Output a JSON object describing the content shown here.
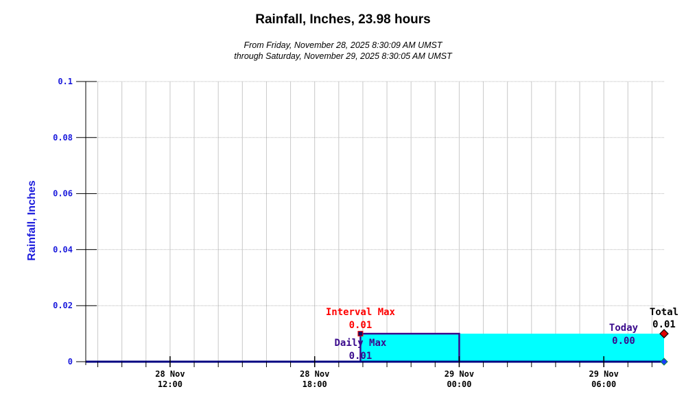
{
  "chart_data": {
    "type": "area",
    "title": "Rainfall, Inches, 23.98 hours",
    "subtitle_lines": [
      "From Friday, November 28, 2025 8:30:09 AM UMST",
      "through Saturday, November 29, 2025 8:30:05 AM UMST"
    ],
    "ylabel": "Rainfall, Inches",
    "ylim": [
      0,
      0.1
    ],
    "y_ticks": [
      "0",
      "0.02",
      "0.04",
      "0.06",
      "0.08",
      "0.1"
    ],
    "x_range_hours": [
      8.5,
      32.5
    ],
    "x_ticks": [
      {
        "hour": 12,
        "line1": "28 Nov",
        "line2": "12:00"
      },
      {
        "hour": 18,
        "line1": "28 Nov",
        "line2": "18:00"
      },
      {
        "hour": 24,
        "line1": "29 Nov",
        "line2": "00:00"
      },
      {
        "hour": 30,
        "line1": "29 Nov",
        "line2": "06:00"
      }
    ],
    "grid": true,
    "series": [
      {
        "name": "Daily Max",
        "x_hours": [
          8.5,
          19.9,
          19.9,
          24.0,
          24.0,
          32.5
        ],
        "values": [
          0,
          0,
          0.01,
          0.01,
          0,
          0
        ],
        "color": "#3a0a8c",
        "fill": "none"
      },
      {
        "name": "Total",
        "x_hours": [
          8.5,
          19.9,
          19.9,
          32.5
        ],
        "values": [
          0,
          0,
          0.01,
          0.01
        ],
        "color": "#000080",
        "fill": "#00ffff"
      }
    ],
    "annotations": [
      {
        "label": "Interval Max",
        "value": "0.01",
        "x_hour": 19.9,
        "y": 0.01,
        "color": "#ff0000"
      },
      {
        "label": "Daily Max",
        "value": "0.01",
        "x_hour": 19.9,
        "y": 0.01,
        "color": "#3a0a8c"
      },
      {
        "label": "Today",
        "value": "0.00",
        "x_hour": 32.5,
        "y": 0.0,
        "color": "#3a0a8c"
      },
      {
        "label": "Total",
        "value": "0.01",
        "x_hour": 32.5,
        "y": 0.01,
        "color": "#000000"
      }
    ],
    "colors": {
      "axis_text": "#1a1adc",
      "fill": "#00ffff",
      "line": "#000080",
      "interval_max": "#ff0000",
      "daily_max": "#3a0a8c"
    }
  }
}
